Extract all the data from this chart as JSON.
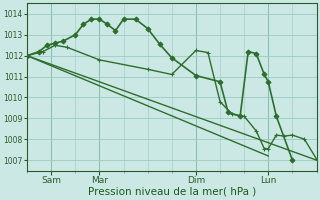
{
  "bg_color": "#cce8e4",
  "grid_color": "#99ccc6",
  "line_color": "#2d6e2d",
  "marker_color": "#2d6e2d",
  "xlabel": "Pression niveau de la mer( hPa )",
  "xlabel_fontsize": 7.5,
  "ylim": [
    1006.5,
    1014.5
  ],
  "yticks": [
    1007,
    1008,
    1009,
    1010,
    1011,
    1012,
    1013,
    1014
  ],
  "xtick_labels": [
    "Sam",
    "Mar",
    "Dim",
    "Lun"
  ],
  "xtick_positions": [
    12,
    36,
    84,
    120
  ],
  "x_vlines": [
    12,
    36,
    84,
    120
  ],
  "xlim": [
    0,
    144
  ],
  "series": [
    {
      "x": [
        0,
        6,
        10,
        14,
        18,
        24,
        28,
        32,
        36,
        40,
        44,
        48,
        54,
        60,
        66,
        72,
        84,
        96,
        100,
        106,
        110,
        114,
        118,
        120,
        124,
        132
      ],
      "y": [
        1012.0,
        1012.2,
        1012.5,
        1012.6,
        1012.7,
        1013.0,
        1013.5,
        1013.75,
        1013.75,
        1013.5,
        1013.2,
        1013.75,
        1013.75,
        1013.3,
        1012.55,
        1011.9,
        1011.05,
        1010.75,
        1009.3,
        1009.1,
        1012.2,
        1012.1,
        1011.1,
        1010.75,
        1009.1,
        1007.0
      ],
      "marker": "D",
      "markersize": 2.5,
      "linewidth": 1.2
    },
    {
      "x": [
        0,
        144
      ],
      "y": [
        1012.0,
        1007.0
      ],
      "marker": "",
      "markersize": 0,
      "linewidth": 1.0
    },
    {
      "x": [
        0,
        120
      ],
      "y": [
        1012.0,
        1007.2
      ],
      "marker": "",
      "markersize": 0,
      "linewidth": 1.0
    },
    {
      "x": [
        0,
        8,
        14,
        20,
        36,
        60,
        72,
        84,
        90,
        96,
        102,
        108,
        114,
        118,
        120,
        124,
        128,
        132,
        138,
        144
      ],
      "y": [
        1012.0,
        1012.2,
        1012.5,
        1012.4,
        1011.8,
        1011.35,
        1011.1,
        1012.25,
        1012.15,
        1009.8,
        1009.2,
        1009.1,
        1008.4,
        1007.55,
        1007.55,
        1008.2,
        1008.15,
        1008.2,
        1008.0,
        1007.05
      ],
      "marker": "+",
      "markersize": 3.5,
      "linewidth": 1.0
    }
  ]
}
